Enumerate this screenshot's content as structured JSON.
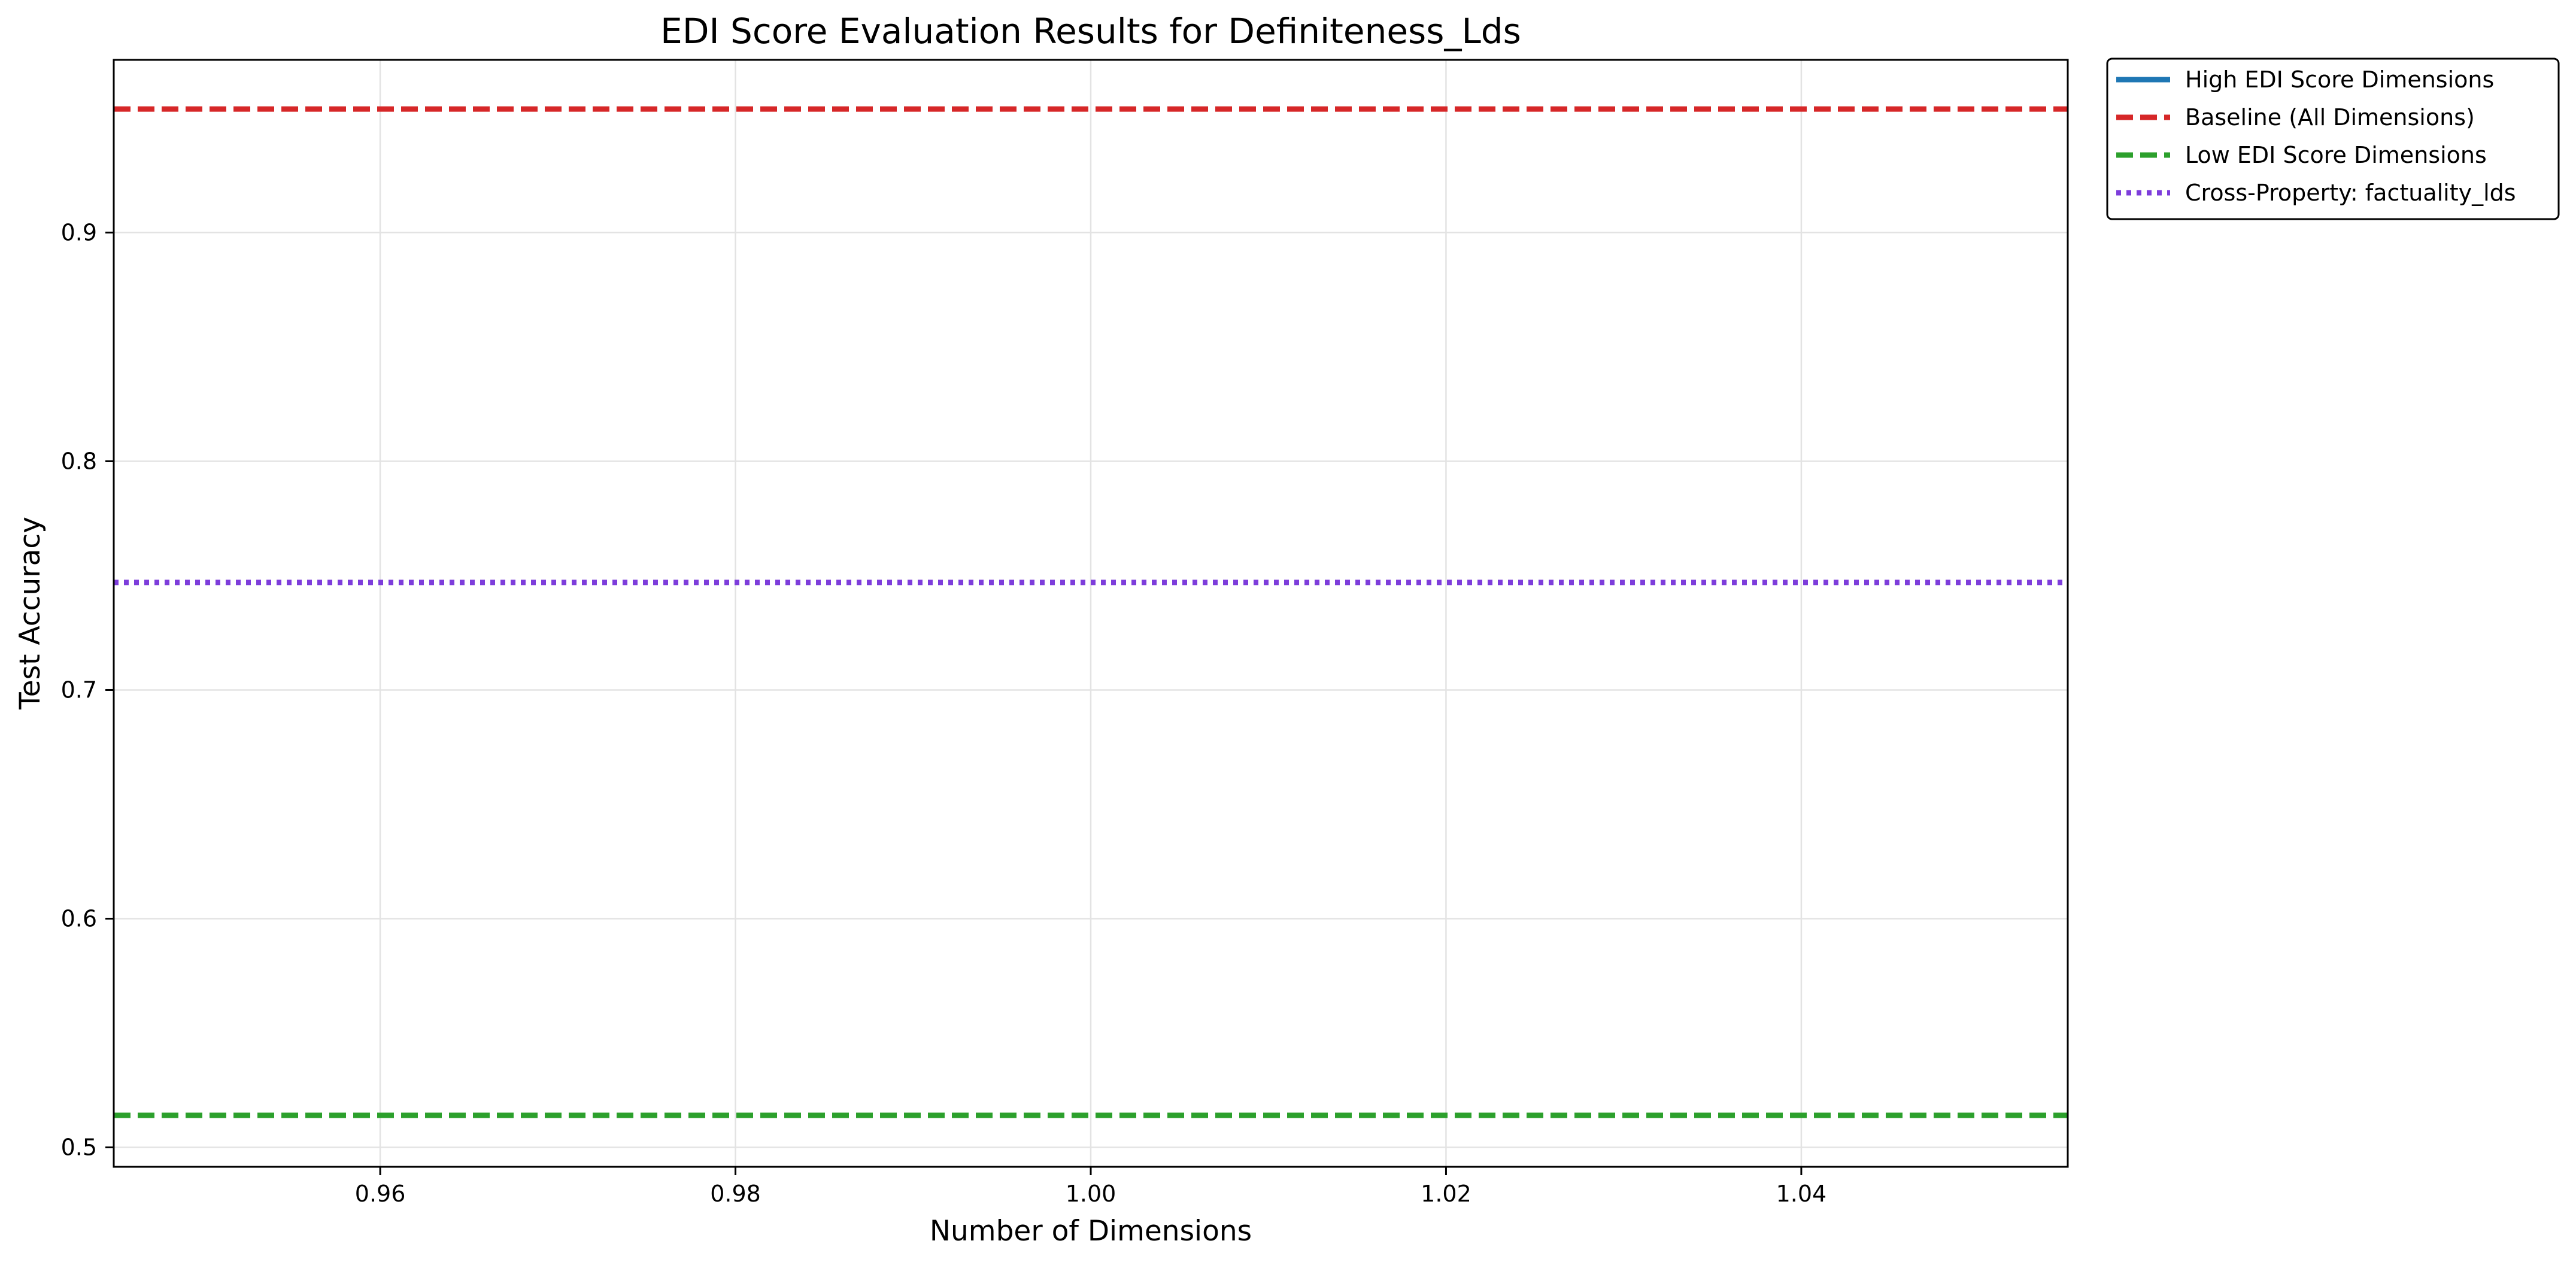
{
  "chart_data": {
    "type": "line",
    "title": "EDI Score Evaluation Results for Definiteness_Lds",
    "xlabel": "Number of Dimensions",
    "ylabel": "Test Accuracy",
    "xlim": [
      0.945,
      1.055
    ],
    "ylim": [
      0.4915,
      0.9755
    ],
    "x_ticks": [
      0.96,
      0.98,
      1.0,
      1.02,
      1.04
    ],
    "x_tick_labels": [
      "0.96",
      "0.98",
      "1.00",
      "1.02",
      "1.04"
    ],
    "y_ticks": [
      0.5,
      0.6,
      0.7,
      0.8,
      0.9
    ],
    "y_tick_labels": [
      "0.5",
      "0.6",
      "0.7",
      "0.8",
      "0.9"
    ],
    "grid": true,
    "legend_position": "outside-top-right",
    "series": [
      {
        "name": "High EDI Score Dimensions",
        "kind": "line",
        "style": "solid",
        "color": "#1f77b4",
        "x": [
          1.0
        ],
        "values": [
          0.954
        ]
      },
      {
        "name": "Baseline (All Dimensions)",
        "kind": "hline",
        "style": "dashed",
        "color": "#d62728",
        "value": 0.954
      },
      {
        "name": "Low EDI Score Dimensions",
        "kind": "hline",
        "style": "dashed",
        "color": "#2ca02c",
        "value": 0.514
      },
      {
        "name": "Cross-Property: factuality_lds",
        "kind": "hline",
        "style": "dotted",
        "color": "#7d3ddb",
        "value": 0.747
      }
    ]
  }
}
